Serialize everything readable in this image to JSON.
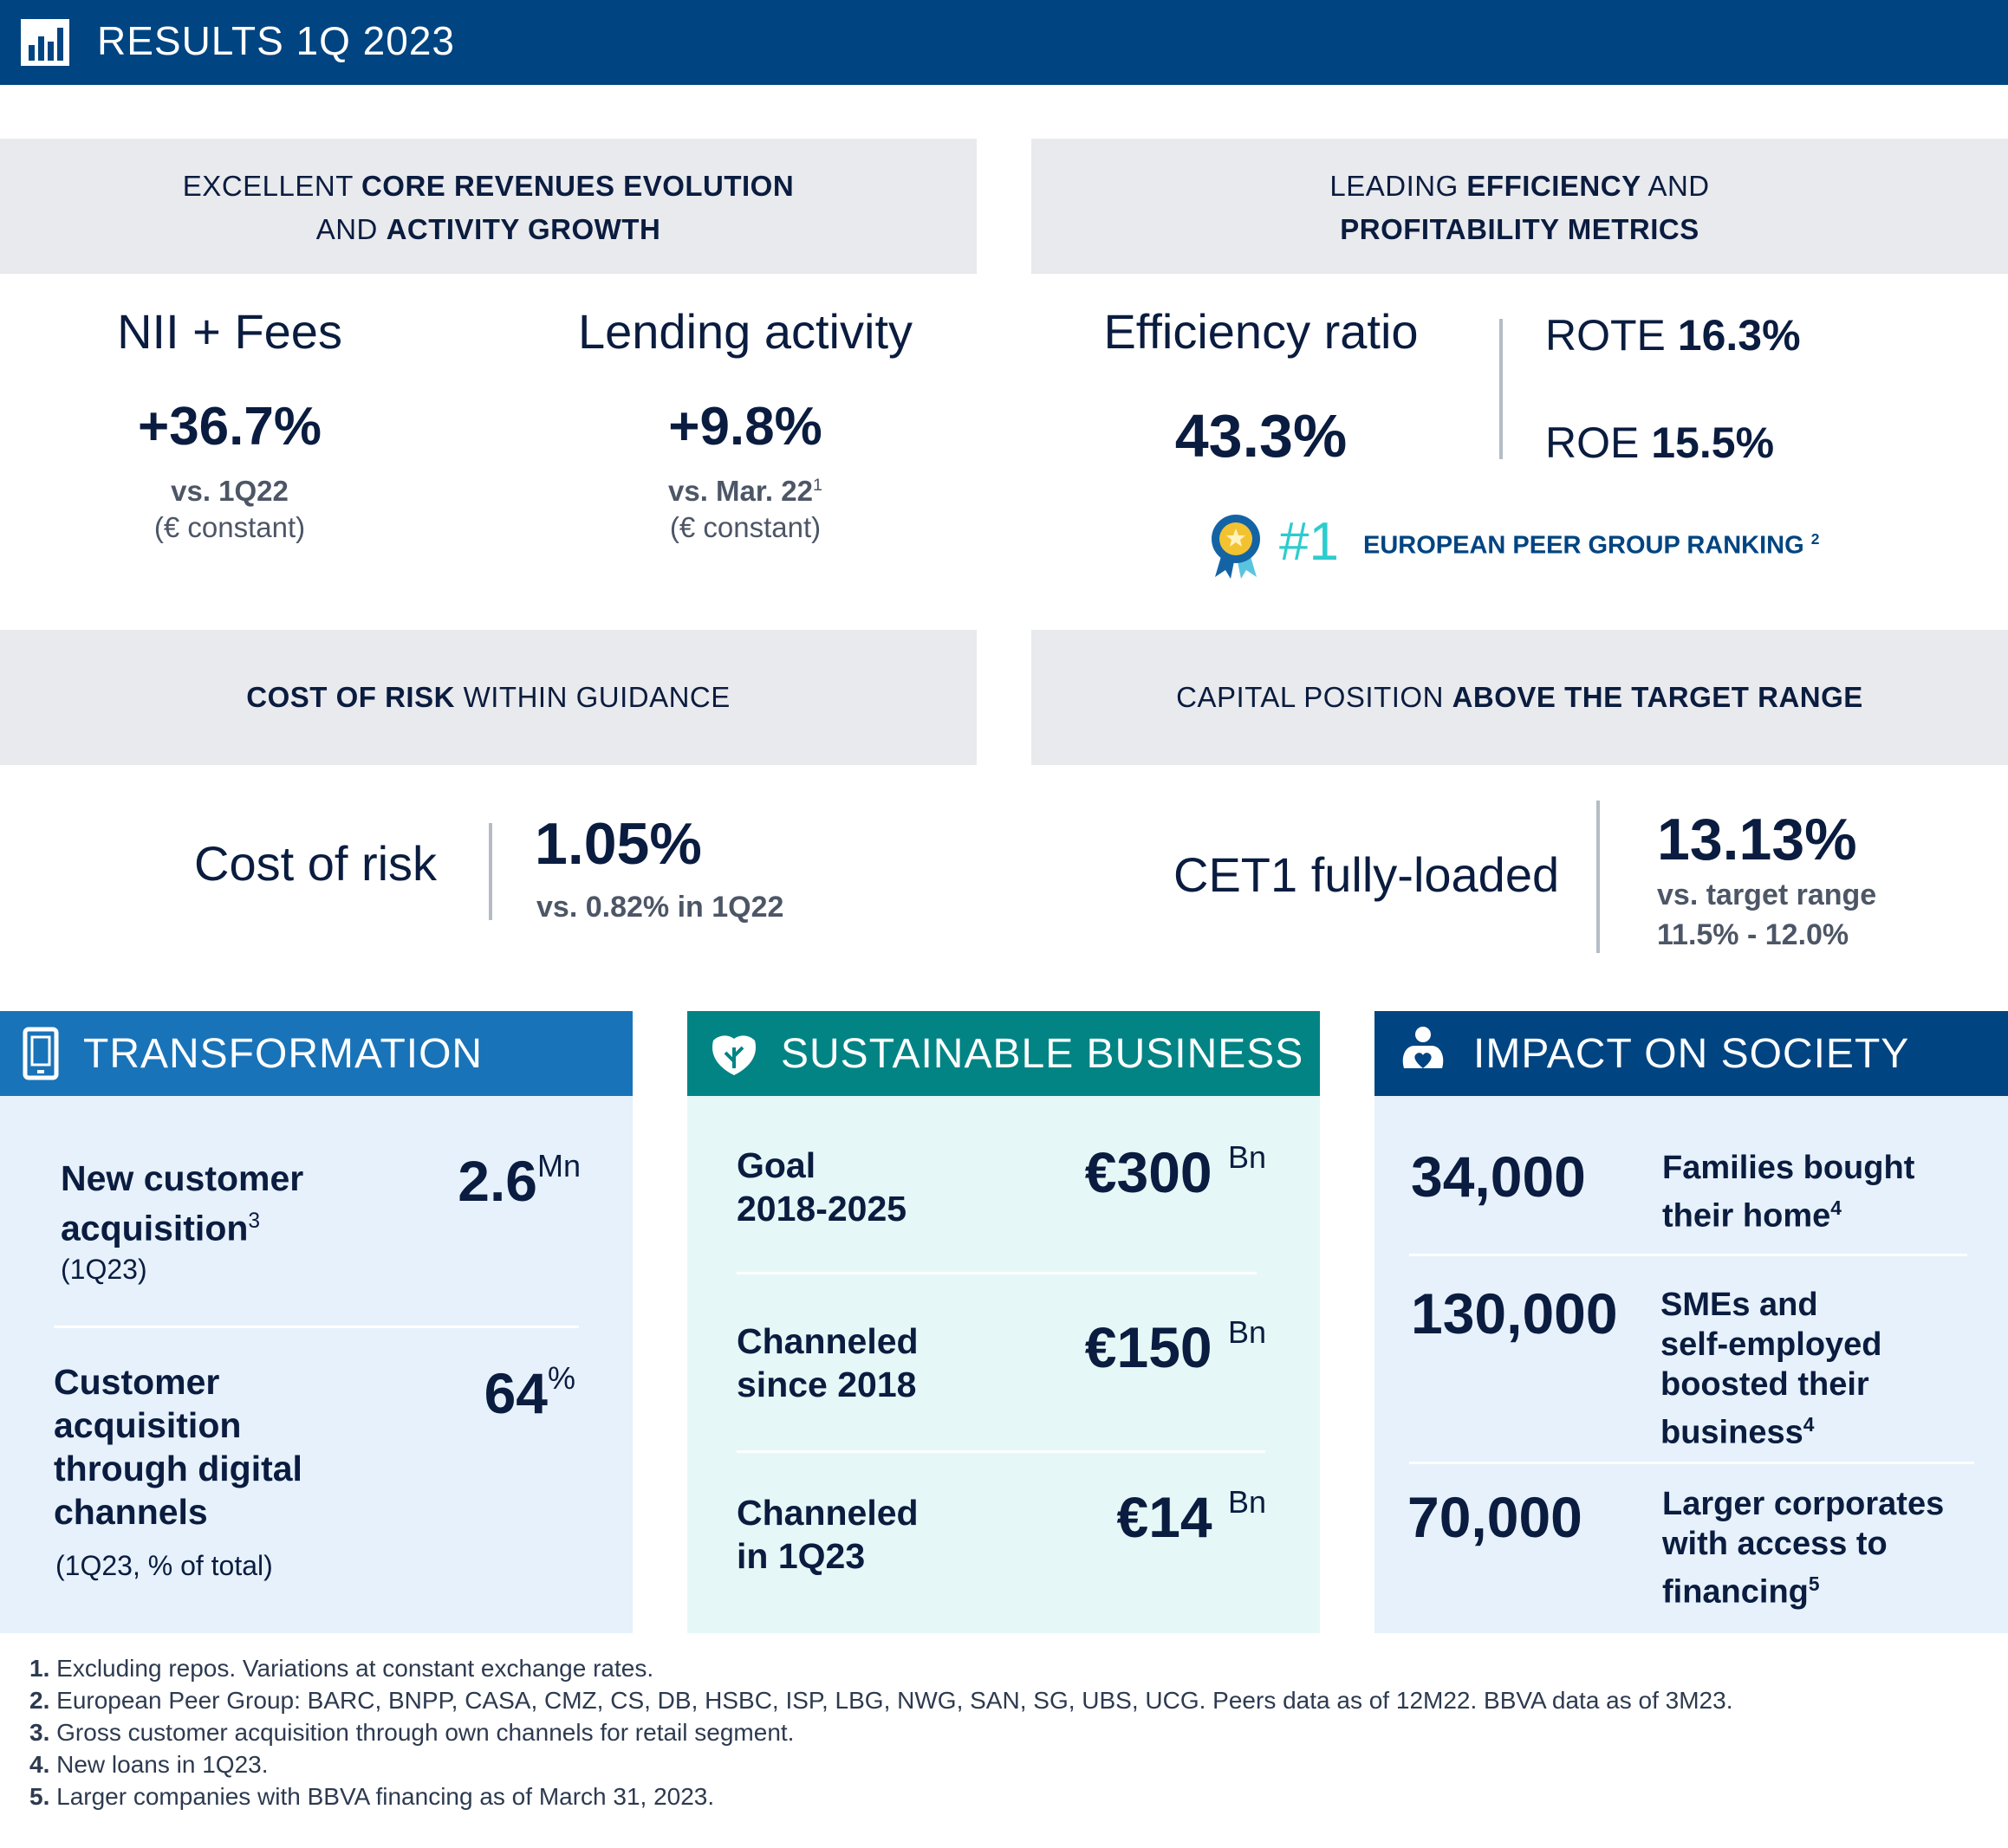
{
  "header": {
    "title": "RESULTS 1Q 2023",
    "icon": "bar-chart-icon"
  },
  "colors": {
    "navy": "#004481",
    "blue": "#1973b8",
    "teal": "#028484",
    "dark": "#0a1c3f",
    "grey_box": "#e9eaed",
    "light_blue_bg": "#e6f1fb",
    "light_teal_bg": "#e6f7f7",
    "turquoise": "#2dcccd"
  },
  "sections": {
    "core": {
      "pre": "EXCELLENT ",
      "bold1": "CORE REVENUES EVOLUTION",
      "line2_pre": "AND ",
      "line2_bold": "ACTIVITY GROWTH"
    },
    "efficiency": {
      "pre": "LEADING ",
      "bold1": "EFFICIENCY",
      "post": " AND",
      "line2_bold": "PROFITABILITY METRICS"
    },
    "risk": {
      "bold": "COST OF RISK",
      "post": " WITHIN GUIDANCE"
    },
    "capital": {
      "pre": "CAPITAL POSITION  ",
      "bold": "ABOVE THE TARGET RANGE"
    }
  },
  "metrics": {
    "nii": {
      "label": "NII + Fees",
      "value": "+36.7%",
      "sub1": "vs. 1Q22",
      "sub2": "(€ constant)"
    },
    "lending": {
      "label": "Lending activity",
      "value": "+9.8%",
      "sub1": "vs. Mar. 22",
      "sub1_sup": "1",
      "sub2": "(€ constant)"
    },
    "efficiency": {
      "label": "Efficiency ratio",
      "value": "43.3%"
    },
    "rote": {
      "label": "ROTE ",
      "value": "16.3%"
    },
    "roe": {
      "label": "ROE ",
      "value": "15.5%"
    },
    "ranking": {
      "rank": "#1",
      "text": "EUROPEAN PEER GROUP RANKING",
      "sup": "2",
      "icon": "award-ribbon-icon"
    },
    "cost_of_risk": {
      "label": "Cost of risk",
      "value": "1.05%",
      "sub": "vs. 0.82% in 1Q22"
    },
    "cet1": {
      "label": "CET1 fully-loaded",
      "value": "13.13%",
      "sub1": "vs. target range",
      "sub2": "11.5% - 12.0%"
    }
  },
  "panels": {
    "transformation": {
      "title": "TRANSFORMATION",
      "icon": "tablet-icon",
      "items": [
        {
          "desc1": "New customer",
          "desc2": "acquisition",
          "sup": "3",
          "note": "(1Q23)",
          "value": "2.6",
          "unit": "Mn"
        },
        {
          "desc1": "Customer",
          "desc2": "acquisition",
          "desc3": "through digital",
          "desc4": "channels",
          "note": "(1Q23, % of total)",
          "value": "64",
          "unit": "%"
        }
      ]
    },
    "sustainable": {
      "title": "SUSTAINABLE BUSINESS",
      "icon": "leaf-icon",
      "items": [
        {
          "desc1": "Goal",
          "desc2": "2018-2025",
          "value": "€300",
          "unit": "Bn"
        },
        {
          "desc1": "Channeled",
          "desc2": "since 2018",
          "value": "€150",
          "unit": "Bn"
        },
        {
          "desc1": "Channeled",
          "desc2": "in 1Q23",
          "value": "€14",
          "unit": "Bn"
        }
      ]
    },
    "society": {
      "title": "IMPACT ON SOCIETY",
      "icon": "people-heart-icon",
      "items": [
        {
          "value": "34,000",
          "desc1": "Families bought",
          "desc2": "their home",
          "sup": "4"
        },
        {
          "value": "130,000",
          "desc1": "SMEs and",
          "desc2": "self-employed",
          "desc3": "boosted their",
          "desc4": "business",
          "sup": "4"
        },
        {
          "value": "70,000",
          "desc1": "Larger corporates",
          "desc2": "with access to",
          "desc3": "financing",
          "sup": "5"
        }
      ]
    }
  },
  "footnotes": [
    {
      "num": "1.",
      "text": " Excluding repos. Variations at constant exchange rates."
    },
    {
      "num": "2.",
      "text": " European Peer Group: BARC, BNPP, CASA, CMZ, CS, DB, HSBC, ISP, LBG, NWG, SAN, SG, UBS, UCG. Peers data as of 12M22. BBVA data as of 3M23."
    },
    {
      "num": "3.",
      "text": " Gross customer acquisition through own channels for retail segment."
    },
    {
      "num": "4.",
      "text": " New loans in 1Q23."
    },
    {
      "num": "5.",
      "text": " Larger companies with BBVA financing as of March 31, 2023."
    }
  ]
}
